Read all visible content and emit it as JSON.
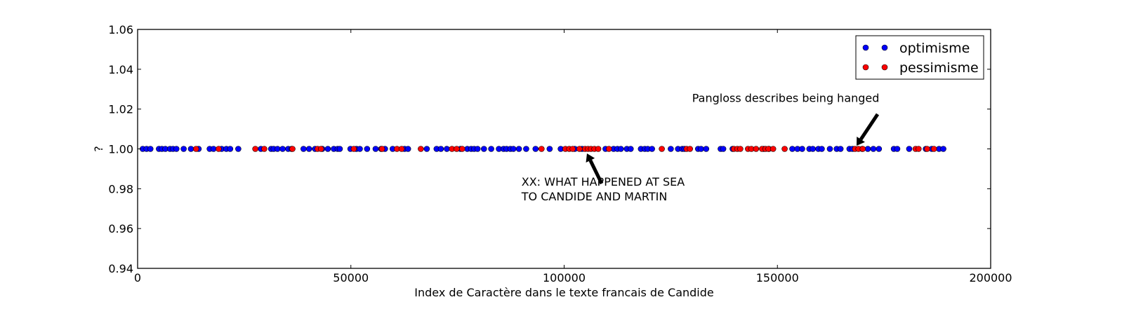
{
  "chart_data": {
    "type": "scatter",
    "xlabel": "Index de Caractère dans le texte francais de Candide",
    "ylabel": "?",
    "xlim": [
      0,
      200000
    ],
    "ylim": [
      0.94,
      1.06
    ],
    "xticks": [
      0,
      50000,
      100000,
      150000,
      200000
    ],
    "xtick_labels": [
      "0",
      "50000",
      "100000",
      "150000",
      "200000"
    ],
    "yticks": [
      0.94,
      0.96,
      0.98,
      1.0,
      1.02,
      1.04,
      1.06
    ],
    "ytick_labels": [
      "0.94",
      "0.96",
      "0.98",
      "1.00",
      "1.02",
      "1.04",
      "1.06"
    ],
    "grid": false,
    "legend_position": "top-right",
    "series": [
      {
        "name": "optimisme",
        "color": "#0000ff",
        "y": 1.0,
        "x": [
          1200,
          2100,
          3000,
          5000,
          5700,
          6500,
          7600,
          8300,
          9100,
          10800,
          12500,
          14300,
          16900,
          17800,
          19700,
          20800,
          21700,
          23600,
          28900,
          31300,
          31900,
          32800,
          34000,
          35300,
          36100,
          38900,
          40200,
          41600,
          43300,
          44600,
          46000,
          46900,
          47400,
          49900,
          51300,
          52100,
          53800,
          55800,
          57100,
          58000,
          59800,
          62600,
          63400,
          67800,
          70100,
          71100,
          72500,
          75700,
          77300,
          78200,
          78900,
          79700,
          81200,
          82900,
          84700,
          85800,
          86500,
          87400,
          88100,
          89400,
          91100,
          93300,
          96600,
          99200,
          102500,
          104200,
          109700,
          111600,
          112500,
          113300,
          114700,
          115600,
          118000,
          118900,
          119600,
          120600,
          125000,
          126700,
          127700,
          128200,
          131400,
          132100,
          133300,
          136700,
          137300,
          139500,
          146800,
          148000,
          153500,
          154700,
          155800,
          157500,
          158300,
          159600,
          160400,
          162300,
          163900,
          164800,
          166900,
          167600,
          169900,
          171200,
          172500,
          173800,
          177300,
          178100,
          180900,
          184800,
          186200,
          187900,
          188900
        ]
      },
      {
        "name": "pessimisme",
        "color": "#ff0000",
        "y": 1.0,
        "x": [
          13700,
          19000,
          27600,
          29700,
          36300,
          42200,
          43000,
          50700,
          57300,
          60800,
          61900,
          66400,
          73700,
          74800,
          76100,
          94700,
          100300,
          101200,
          102000,
          103600,
          104900,
          105600,
          106300,
          107100,
          108000,
          110500,
          122900,
          128700,
          129500,
          139800,
          140600,
          141300,
          143100,
          143900,
          145000,
          146400,
          147200,
          147900,
          149000,
          151700,
          168200,
          169000,
          170000,
          182400,
          183100,
          185100,
          186700
        ]
      }
    ],
    "annotations": [
      {
        "lines": [
          "XX: WHAT HAPPENED AT SEA",
          "TO CANDIDE AND MARTIN"
        ],
        "target": [
          104800,
          1.0
        ],
        "text_anchor": [
          90000,
          0.9815
        ]
      },
      {
        "lines": [
          "Pangloss describes being hanged"
        ],
        "target": [
          168500,
          1.0
        ],
        "text_anchor": [
          130000,
          1.0235
        ]
      }
    ]
  }
}
